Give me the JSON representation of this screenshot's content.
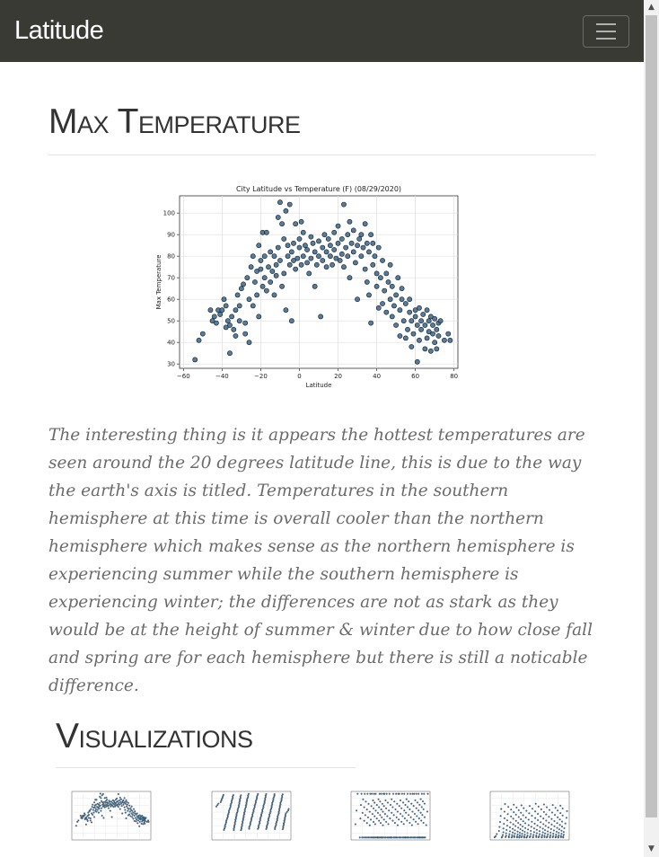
{
  "navbar": {
    "brand": "Latitude",
    "toggler_icon": "hamburger-icon"
  },
  "main": {
    "title": "Max Temperature",
    "description": "The interesting thing is it appears the hottest temperatures are seen around the 20 degrees latitude line, this is due to the way the earth's axis is titled. Temperatures in the southern hemisphere at this time is overall cooler than the northern hemisphere which makes sense as the northern hemisphere is experiencing summer while the southern hemisphere is experiencing winter; the differences are not as stark as they would be at the height of summer & winter due to how close fall and spring are for each hemisphere but there is still a noticable difference."
  },
  "visualizations": {
    "title": "Visualizations"
  },
  "colors": {
    "navbar_bg": "#3a3a35",
    "point_fill": "#3f6f95",
    "point_stroke": "#1a1a1a"
  },
  "chart_data": {
    "type": "scatter",
    "title": "City Latitude vs Temperature (F) (08/29/2020)",
    "xlabel": "Latitude",
    "ylabel": "Max Temperature",
    "xlim": [
      -62,
      82
    ],
    "ylim": [
      28,
      108
    ],
    "xticks": [
      "-60",
      "-40",
      "-20",
      "0",
      "20",
      "40",
      "60",
      "80"
    ],
    "yticks": [
      "30",
      "40",
      "50",
      "60",
      "70",
      "80",
      "90",
      "100"
    ],
    "grid": true,
    "points": [
      [
        -54,
        32
      ],
      [
        -52,
        41
      ],
      [
        -50,
        44
      ],
      [
        -46,
        55
      ],
      [
        -45,
        50
      ],
      [
        -44,
        52
      ],
      [
        -43,
        49
      ],
      [
        -42,
        55
      ],
      [
        -41,
        53
      ],
      [
        -40,
        55
      ],
      [
        -39,
        60
      ],
      [
        -38,
        47
      ],
      [
        -38,
        57
      ],
      [
        -37,
        50
      ],
      [
        -36,
        48
      ],
      [
        -36,
        35
      ],
      [
        -35,
        52
      ],
      [
        -34,
        46
      ],
      [
        -33,
        55
      ],
      [
        -33,
        43
      ],
      [
        -32,
        62
      ],
      [
        -31,
        57
      ],
      [
        -31,
        50
      ],
      [
        -30,
        65
      ],
      [
        -29,
        67
      ],
      [
        -28,
        49
      ],
      [
        -28,
        44
      ],
      [
        -27,
        70
      ],
      [
        -26,
        60
      ],
      [
        -26,
        40
      ],
      [
        -25,
        75
      ],
      [
        -24,
        80
      ],
      [
        -24,
        57
      ],
      [
        -23,
        68
      ],
      [
        -22,
        73
      ],
      [
        -22,
        62
      ],
      [
        -21,
        85
      ],
      [
        -21,
        52
      ],
      [
        -20,
        78
      ],
      [
        -20,
        74
      ],
      [
        -19,
        91
      ],
      [
        -19,
        66
      ],
      [
        -18,
        80
      ],
      [
        -18,
        70
      ],
      [
        -17,
        64
      ],
      [
        -17,
        91
      ],
      [
        -16,
        75
      ],
      [
        -15,
        82
      ],
      [
        -15,
        68
      ],
      [
        -14,
        73
      ],
      [
        -13,
        80
      ],
      [
        -13,
        62
      ],
      [
        -12,
        71
      ],
      [
        -12,
        76
      ],
      [
        -11,
        98
      ],
      [
        -11,
        84
      ],
      [
        -10,
        105
      ],
      [
        -10,
        78
      ],
      [
        -9,
        66
      ],
      [
        -9,
        95
      ],
      [
        -8,
        88
      ],
      [
        -8,
        72
      ],
      [
        -7,
        101
      ],
      [
        -7,
        55
      ],
      [
        -6,
        85
      ],
      [
        -6,
        80
      ],
      [
        -5,
        104
      ],
      [
        -5,
        76
      ],
      [
        -4,
        82
      ],
      [
        -4,
        50
      ],
      [
        -3,
        78
      ],
      [
        -3,
        86
      ],
      [
        -2,
        95
      ],
      [
        -2,
        74
      ],
      [
        -1,
        79
      ],
      [
        0,
        84
      ],
      [
        0,
        88
      ],
      [
        1,
        76
      ],
      [
        1,
        96
      ],
      [
        2,
        80
      ],
      [
        2,
        91
      ],
      [
        3,
        85
      ],
      [
        4,
        77
      ],
      [
        4,
        83
      ],
      [
        5,
        72
      ],
      [
        6,
        89
      ],
      [
        6,
        79
      ],
      [
        7,
        86
      ],
      [
        8,
        66
      ],
      [
        8,
        82
      ],
      [
        9,
        76
      ],
      [
        10,
        87
      ],
      [
        10,
        80
      ],
      [
        11,
        52
      ],
      [
        12,
        84
      ],
      [
        12,
        78
      ],
      [
        13,
        90
      ],
      [
        14,
        75
      ],
      [
        14,
        82
      ],
      [
        15,
        88
      ],
      [
        16,
        80
      ],
      [
        16,
        85
      ],
      [
        17,
        76
      ],
      [
        18,
        91
      ],
      [
        18,
        83
      ],
      [
        19,
        79
      ],
      [
        20,
        86
      ],
      [
        20,
        94
      ],
      [
        21,
        78
      ],
      [
        22,
        81
      ],
      [
        22,
        88
      ],
      [
        23,
        104
      ],
      [
        23,
        75
      ],
      [
        24,
        84
      ],
      [
        25,
        90
      ],
      [
        25,
        80
      ],
      [
        26,
        96
      ],
      [
        26,
        70
      ],
      [
        27,
        86
      ],
      [
        28,
        82
      ],
      [
        28,
        92
      ],
      [
        29,
        77
      ],
      [
        30,
        85
      ],
      [
        30,
        60
      ],
      [
        31,
        88
      ],
      [
        32,
        80
      ],
      [
        32,
        90
      ],
      [
        33,
        84
      ],
      [
        34,
        74
      ],
      [
        34,
        95
      ],
      [
        35,
        86
      ],
      [
        35,
        68
      ],
      [
        36,
        82
      ],
      [
        36,
        62
      ],
      [
        37,
        90
      ],
      [
        37,
        49
      ],
      [
        38,
        76
      ],
      [
        38,
        86
      ],
      [
        39,
        80
      ],
      [
        40,
        72
      ],
      [
        40,
        66
      ],
      [
        41,
        84
      ],
      [
        41,
        56
      ],
      [
        42,
        70
      ],
      [
        43,
        78
      ],
      [
        43,
        58
      ],
      [
        44,
        64
      ],
      [
        45,
        72
      ],
      [
        45,
        54
      ],
      [
        46,
        68
      ],
      [
        47,
        60
      ],
      [
        47,
        76
      ],
      [
        48,
        52
      ],
      [
        48,
        66
      ],
      [
        49,
        57
      ],
      [
        50,
        62
      ],
      [
        50,
        48
      ],
      [
        51,
        70
      ],
      [
        52,
        55
      ],
      [
        52,
        43
      ],
      [
        53,
        60
      ],
      [
        53,
        65
      ],
      [
        54,
        50
      ],
      [
        55,
        58
      ],
      [
        55,
        42
      ],
      [
        56,
        46
      ],
      [
        57,
        54
      ],
      [
        57,
        60
      ],
      [
        58,
        50
      ],
      [
        58,
        38
      ],
      [
        59,
        44
      ],
      [
        60,
        55
      ],
      [
        60,
        52
      ],
      [
        61,
        48
      ],
      [
        61,
        31
      ],
      [
        62,
        56
      ],
      [
        62,
        41
      ],
      [
        63,
        50
      ],
      [
        63,
        46
      ],
      [
        64,
        53
      ],
      [
        65,
        37
      ],
      [
        65,
        48
      ],
      [
        66,
        42
      ],
      [
        66,
        55
      ],
      [
        67,
        45
      ],
      [
        67,
        50
      ],
      [
        68,
        36
      ],
      [
        68,
        52
      ],
      [
        69,
        44
      ],
      [
        69,
        48
      ],
      [
        70,
        40
      ],
      [
        70,
        51
      ],
      [
        71,
        46
      ],
      [
        71,
        37
      ],
      [
        72,
        49
      ],
      [
        72,
        43
      ],
      [
        73,
        50
      ],
      [
        75,
        41
      ],
      [
        77,
        44
      ],
      [
        78,
        41
      ]
    ]
  }
}
